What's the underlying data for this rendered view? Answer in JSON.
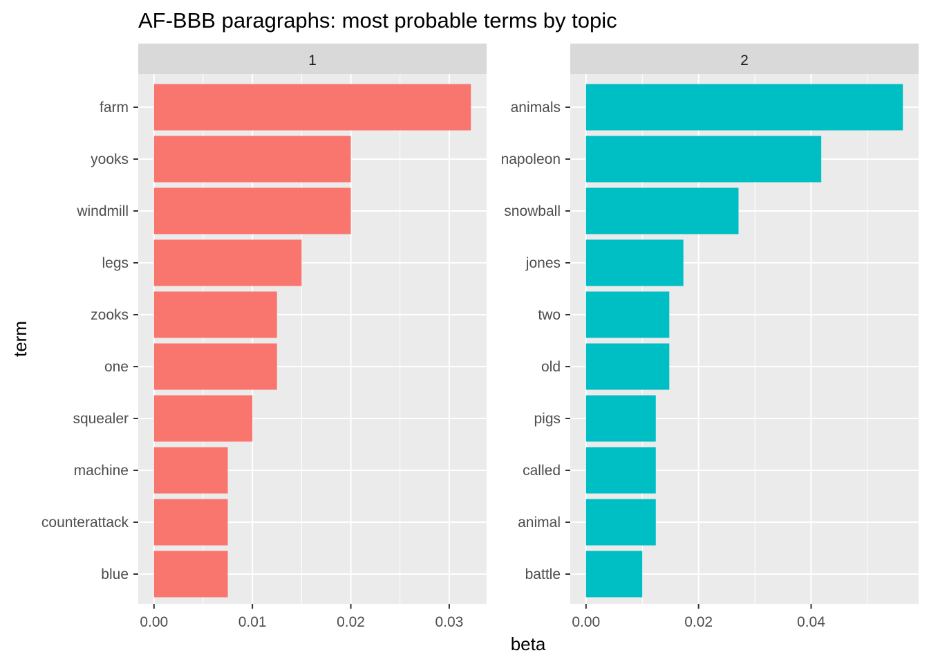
{
  "chart_data": {
    "type": "bar",
    "orientation": "horizontal",
    "title": "AF-BBB paragraphs: most probable terms by topic",
    "xlabel": "beta",
    "ylabel": "term",
    "grid": true,
    "legend": "none",
    "panels": [
      {
        "strip": "1",
        "color": "#F8766D",
        "xlim": [
          -0.0016,
          0.0338
        ],
        "ticks": [
          0,
          0.01,
          0.02,
          0.03
        ],
        "tick_labels": [
          "0.00",
          "0.01",
          "0.02",
          "0.03"
        ],
        "categories": [
          "farm",
          "yooks",
          "windmill",
          "legs",
          "zooks",
          "one",
          "squealer",
          "machine",
          "counterattack",
          "blue"
        ],
        "values": [
          0.0322,
          0.02,
          0.02,
          0.015,
          0.0125,
          0.0125,
          0.01,
          0.0075,
          0.0075,
          0.0075
        ]
      },
      {
        "strip": "2",
        "color": "#00BFC4",
        "xlim": [
          -0.0028,
          0.0591
        ],
        "ticks": [
          0,
          0.02,
          0.04
        ],
        "tick_labels": [
          "0.00",
          "0.02",
          "0.04"
        ],
        "categories": [
          "animals",
          "napoleon",
          "snowball",
          "jones",
          "two",
          "old",
          "pigs",
          "called",
          "animal",
          "battle"
        ],
        "values": [
          0.0563,
          0.0418,
          0.0271,
          0.0173,
          0.0148,
          0.0148,
          0.0124,
          0.0124,
          0.0124,
          0.01
        ]
      }
    ]
  }
}
